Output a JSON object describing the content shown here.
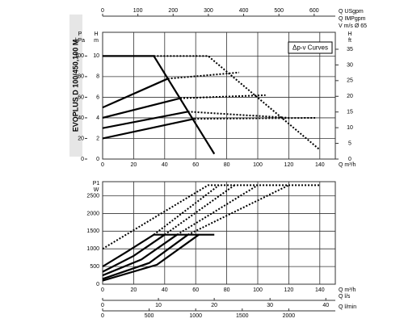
{
  "title": "EVOPLUS D 100/450,100 M",
  "chart_data": [
    {
      "type": "line",
      "annotation": "Δp-v Curves",
      "xlabel": "Q m³/h",
      "xlim": [
        0,
        150
      ],
      "xticks": [
        0,
        20,
        40,
        60,
        80,
        100,
        120,
        140
      ],
      "ylabel": "H",
      "yunit": "m",
      "ylim": [
        0,
        12.3
      ],
      "yticks": [
        0,
        2,
        4,
        6,
        8,
        10
      ],
      "plabel": "P",
      "punit": "kPa",
      "plim": [
        0,
        123
      ],
      "pticks": [
        0,
        20,
        40,
        60,
        80,
        100
      ],
      "y2label": "H",
      "y2unit": "ft",
      "y2lim": [
        0,
        40.4
      ],
      "y2ticks": [
        0,
        5,
        10,
        15,
        20,
        25,
        30,
        35
      ],
      "top_axes": [
        {
          "label": "Q USgpm",
          "lim": [
            0,
            660
          ],
          "ticks": [
            0,
            100,
            200,
            300,
            400,
            500,
            600
          ]
        },
        {
          "label": "Q IMPgpm"
        },
        {
          "label": "V m/s Ø 65"
        }
      ],
      "grid": true,
      "series": [
        {
          "color": "#000000",
          "style": "solid",
          "x": [
            0,
            33,
            72
          ],
          "values": [
            10,
            10,
            0.5
          ]
        },
        {
          "color": "#000000",
          "style": "solid",
          "x": [
            0,
            42
          ],
          "values": [
            5,
            7.8
          ]
        },
        {
          "color": "#000000",
          "style": "solid",
          "x": [
            0,
            50
          ],
          "values": [
            4,
            5.9
          ]
        },
        {
          "color": "#000000",
          "style": "solid",
          "x": [
            0,
            55
          ],
          "values": [
            3,
            4.6
          ]
        },
        {
          "color": "#000000",
          "style": "solid",
          "x": [
            0,
            59
          ],
          "values": [
            2,
            3.9
          ]
        },
        {
          "color": "#000000",
          "style": "dotted",
          "x": [
            33,
            68,
            140
          ],
          "values": [
            10,
            10,
            0.9
          ]
        },
        {
          "color": "#000000",
          "style": "dotted",
          "x": [
            42,
            88
          ],
          "values": [
            7.8,
            8.4
          ]
        },
        {
          "color": "#000000",
          "style": "dotted",
          "x": [
            50,
            105
          ],
          "values": [
            5.9,
            6.2
          ]
        },
        {
          "color": "#000000",
          "style": "dotted",
          "x": [
            55,
            120
          ],
          "values": [
            4.6,
            4.0
          ]
        },
        {
          "color": "#000000",
          "style": "dotted",
          "x": [
            59,
            137
          ],
          "values": [
            3.9,
            4.0
          ]
        }
      ]
    },
    {
      "type": "line",
      "xlabel": "Q m³/h",
      "xlim": [
        0,
        150
      ],
      "xticks": [
        0,
        20,
        40,
        60,
        80,
        100,
        120,
        140
      ],
      "ylabel": "P1",
      "yunit": "W",
      "ylim": [
        0,
        2900
      ],
      "yticks": [
        0,
        500,
        1000,
        1500,
        2000,
        2500
      ],
      "bottom_axes": [
        {
          "label": "Q l/s",
          "lim": [
            0,
            41.7
          ],
          "ticks": [
            0,
            10,
            20,
            30,
            40
          ]
        },
        {
          "label": "Q l/min",
          "lim": [
            0,
            2500
          ],
          "ticks": [
            0,
            500,
            1000,
            1500,
            2000
          ]
        }
      ],
      "grid": true,
      "series": [
        {
          "color": "#000000",
          "style": "solid",
          "x": [
            0,
            15,
            33,
            72
          ],
          "values": [
            500,
            900,
            1400,
            1400
          ]
        },
        {
          "color": "#000000",
          "style": "solid",
          "x": [
            0,
            20,
            40
          ],
          "values": [
            350,
            800,
            1400
          ]
        },
        {
          "color": "#000000",
          "style": "solid",
          "x": [
            0,
            25,
            48
          ],
          "values": [
            250,
            700,
            1400
          ]
        },
        {
          "color": "#000000",
          "style": "solid",
          "x": [
            0,
            30,
            55
          ],
          "values": [
            150,
            600,
            1400
          ]
        },
        {
          "color": "#000000",
          "style": "solid",
          "x": [
            0,
            35,
            62
          ],
          "values": [
            100,
            550,
            1400
          ]
        },
        {
          "color": "#000000",
          "style": "dotted",
          "x": [
            0,
            68,
            140
          ],
          "values": [
            1000,
            2800,
            2800
          ]
        },
        {
          "color": "#000000",
          "style": "dotted",
          "x": [
            33,
            75
          ],
          "values": [
            1400,
            2800
          ]
        },
        {
          "color": "#000000",
          "style": "dotted",
          "x": [
            40,
            85
          ],
          "values": [
            1400,
            2800
          ]
        },
        {
          "color": "#000000",
          "style": "dotted",
          "x": [
            48,
            100
          ],
          "values": [
            1400,
            2800
          ]
        },
        {
          "color": "#000000",
          "style": "dotted",
          "x": [
            55,
            120
          ],
          "values": [
            1400,
            2800
          ]
        }
      ]
    }
  ]
}
